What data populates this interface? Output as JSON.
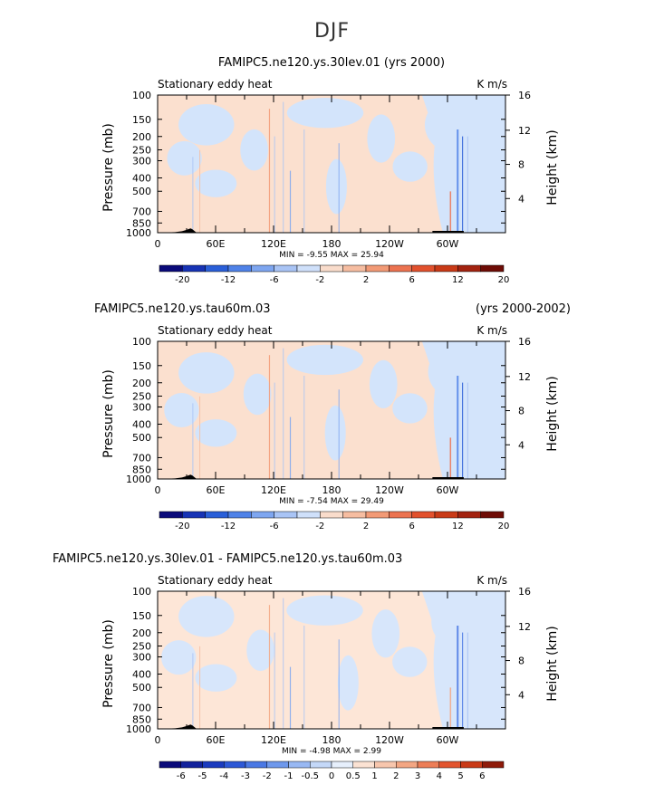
{
  "figure_title": "DJF",
  "chart_data": [
    {
      "type": "heatmap",
      "title": "FAMIPC5.ne120.ys.30lev.01 (yrs 2000)",
      "subtitle_left": "",
      "subtitle_right": "",
      "field_label": "Stationary eddy heat",
      "units": "K m/s",
      "ylabel": "Pressure (mb)",
      "ylabel_right": "Height (km)",
      "yticks": [
        "100",
        "150",
        "200",
        "250",
        "300",
        "400",
        "500",
        "700",
        "850",
        "1000"
      ],
      "yticks_right": [
        "16",
        "12",
        "8",
        "4"
      ],
      "xticks": [
        "0",
        "60E",
        "120E",
        "180",
        "120W",
        "60W"
      ],
      "stats": "MIN =   -9.55   MAX =   25.94",
      "min": -9.55,
      "max": 25.94,
      "colorbar_labels": [
        "-20",
        "-12",
        "-6",
        "-2",
        "2",
        "6",
        "12",
        "20"
      ],
      "colorbar_colors": [
        "#0a0a7a",
        "#1733b5",
        "#2a5fd8",
        "#4f82e8",
        "#7ea6f0",
        "#a9c4f5",
        "#cfe0fa",
        "#f9dccb",
        "#f6bda1",
        "#f29a76",
        "#ec7350",
        "#e2512d",
        "#c93a17",
        "#a32310",
        "#6e0c06"
      ]
    },
    {
      "type": "heatmap",
      "title": "",
      "subtitle_left": "FAMIPC5.ne120.ys.tau60m.03",
      "subtitle_right": "(yrs 2000-2002)",
      "field_label": "Stationary eddy heat",
      "units": "K m/s",
      "ylabel": "Pressure (mb)",
      "ylabel_right": "Height (km)",
      "yticks": [
        "100",
        "150",
        "200",
        "250",
        "300",
        "400",
        "500",
        "700",
        "850",
        "1000"
      ],
      "yticks_right": [
        "16",
        "12",
        "8",
        "4"
      ],
      "xticks": [
        "0",
        "60E",
        "120E",
        "180",
        "120W",
        "60W"
      ],
      "stats": "MIN =   -7.54   MAX =   29.49",
      "min": -7.54,
      "max": 29.49,
      "colorbar_labels": [
        "-20",
        "-12",
        "-6",
        "-2",
        "2",
        "6",
        "12",
        "20"
      ],
      "colorbar_colors": [
        "#0a0a7a",
        "#1733b5",
        "#2a5fd8",
        "#4f82e8",
        "#7ea6f0",
        "#a9c4f5",
        "#cfe0fa",
        "#f9dccb",
        "#f6bda1",
        "#f29a76",
        "#ec7350",
        "#e2512d",
        "#c93a17",
        "#a32310",
        "#6e0c06"
      ]
    },
    {
      "type": "heatmap",
      "title": "",
      "subtitle_left": "FAMIPC5.ne120.ys.30lev.01 - FAMIPC5.ne120.ys.tau60m.03",
      "subtitle_right": "",
      "field_label": "Stationary eddy heat",
      "units": "K m/s",
      "ylabel": "Pressure (mb)",
      "ylabel_right": "Height (km)",
      "yticks": [
        "100",
        "150",
        "200",
        "250",
        "300",
        "400",
        "500",
        "700",
        "850",
        "1000"
      ],
      "yticks_right": [
        "16",
        "12",
        "8",
        "4"
      ],
      "xticks": [
        "0",
        "60E",
        "120E",
        "180",
        "120W",
        "60W"
      ],
      "stats": "MIN =   -4.98   MAX =    2.99",
      "min": -4.98,
      "max": 2.99,
      "colorbar_labels": [
        "-6",
        "-5",
        "-4",
        "-3",
        "-2",
        "-1",
        "-0.5",
        "0",
        "0.5",
        "1",
        "2",
        "3",
        "4",
        "5",
        "6"
      ],
      "colorbar_colors": [
        "#0a0a7a",
        "#12229c",
        "#1b3bbf",
        "#2d58d6",
        "#4a78e4",
        "#6e98ec",
        "#98b8f3",
        "#c4d8f8",
        "#e6effc",
        "#fbe2d3",
        "#f7c6ad",
        "#f3a683",
        "#ed7e57",
        "#e2552f",
        "#c93a17",
        "#8f1b0a"
      ]
    }
  ]
}
